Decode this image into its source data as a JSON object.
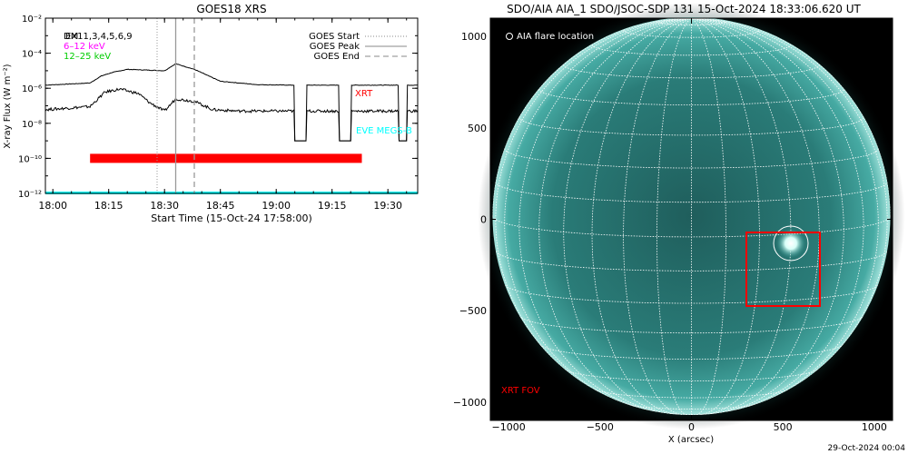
{
  "chart_data": [
    {
      "type": "line",
      "title": "GOES18 XRS",
      "xlabel": "Start Time (15-Oct-24 17:58:00)",
      "ylabel": "X-ray Flux (W m⁻²)",
      "y_scale": "log",
      "ylim": [
        1e-12,
        0.01
      ],
      "xlim": [
        "17:58",
        "19:38"
      ],
      "x_ticks": [
        "18:00",
        "18:15",
        "18:30",
        "18:45",
        "19:00",
        "19:15",
        "19:30"
      ],
      "y_ticks": [
        "10⁻¹²",
        "10⁻¹⁰",
        "10⁻⁸",
        "10⁻⁶",
        "10⁻⁴",
        "10⁻²"
      ],
      "overlay_labels": [
        "DM",
        "EX11,3,4,5,6,9"
      ],
      "energy_labels": [
        {
          "text": "6–12 keV",
          "color": "#ff00ff"
        },
        {
          "text": "12–25 keV",
          "color": "#00cc00"
        }
      ],
      "legend": {
        "placement": "top-right",
        "entries": [
          {
            "label": "GOES Start",
            "style": "dotted"
          },
          {
            "label": "GOES Peak",
            "style": "solid"
          },
          {
            "label": "GOES End",
            "style": "dashed"
          }
        ]
      },
      "markers": {
        "goes_start": "18:28",
        "goes_peak": "18:33",
        "goes_end": "18:38"
      },
      "series": [
        {
          "color": "#000000",
          "x": [
            "17:58",
            "18:10",
            "18:13",
            "18:16",
            "18:20",
            "18:25",
            "18:30",
            "18:33",
            "18:38",
            "18:45",
            "18:55",
            "19:05"
          ],
          "y": [
            1.5e-06,
            2e-06,
            5e-06,
            8e-06,
            1.2e-05,
            1.1e-05,
            1e-05,
            2.5e-05,
            1.2e-05,
            2.5e-06,
            1.6e-06,
            1.5e-06
          ]
        },
        {
          "color": "#000000",
          "x": [
            "17:58",
            "18:10",
            "18:14",
            "18:18",
            "18:23",
            "18:26",
            "18:30",
            "18:33",
            "18:38",
            "18:43",
            "18:50",
            "18:55",
            "19:05"
          ],
          "y": [
            6e-08,
            9e-08,
            6e-07,
            9e-07,
            5e-07,
            1.5e-07,
            5e-08,
            2.5e-07,
            1.8e-07,
            6e-08,
            5e-08,
            5e-08,
            5e-08
          ]
        }
      ],
      "data_gaps": [
        [
          "19:05",
          "19:08"
        ],
        [
          "19:17",
          "19:20"
        ],
        [
          "19:33",
          "19:35"
        ]
      ],
      "bars": [
        {
          "name": "XRT",
          "color": "#ff0000",
          "x_range": [
            "18:10",
            "19:23"
          ],
          "value": 1e-10
        },
        {
          "name": "EVE MEGS-B",
          "color": "#00ffff",
          "value": 1e-12
        }
      ]
    },
    {
      "type": "image",
      "title": "SDO/AIA AIA_1 SDO/JSOC-SDP 131 15-Oct-2024 18:33:06.620 UT",
      "xlabel": "X (arcsec)",
      "xlim": [
        -1100,
        1100
      ],
      "ylim": [
        -1100,
        1100
      ],
      "x_ticks": [
        "−1000",
        "−500",
        "0",
        "500",
        "1000"
      ],
      "y_ticks": [
        "1000",
        "500",
        "0",
        "−500",
        "−1000"
      ],
      "flare_legend": "AIA flare location",
      "flare_location": [
        550,
        -150
      ],
      "fov_label": "XRT FOV",
      "xrt_fov": {
        "x": [
          300,
          700
        ],
        "y": [
          -490,
          -80
        ]
      },
      "footer": "29-Oct-2024 00:04",
      "colors": {
        "disk": "#2f8a86",
        "background": "#000000",
        "fov_box": "#ff0000",
        "grid": "#ffffff"
      }
    }
  ]
}
